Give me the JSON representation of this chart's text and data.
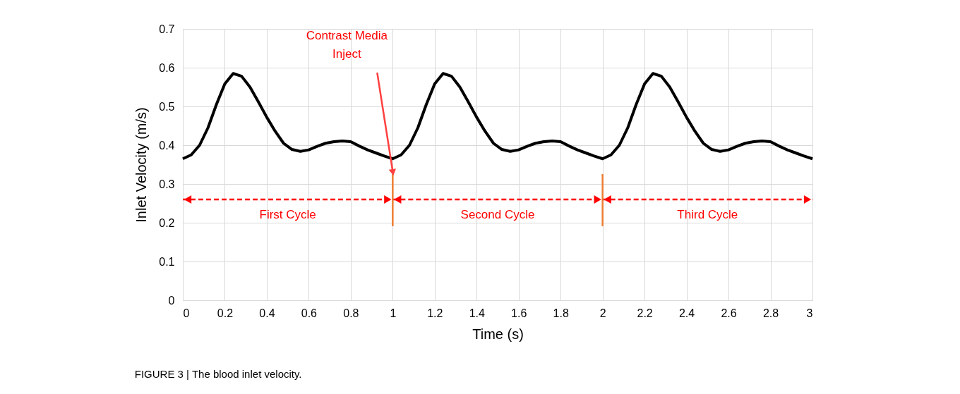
{
  "chart_data": {
    "type": "line",
    "title": "FIGURE 3 | The blood inlet velocity.",
    "xlabel": "Time  (s)",
    "ylabel": "Inlet  Velocity  (m/s)",
    "x": [
      0,
      0.04,
      0.08,
      0.12,
      0.16,
      0.2,
      0.24,
      0.28,
      0.32,
      0.36,
      0.4,
      0.44,
      0.48,
      0.52,
      0.56,
      0.6,
      0.64,
      0.68,
      0.72,
      0.76,
      0.8,
      0.84,
      0.88,
      0.92,
      0.96,
      1.0,
      1.04,
      1.08,
      1.12,
      1.16,
      1.2,
      1.24,
      1.28,
      1.32,
      1.36,
      1.4,
      1.44,
      1.48,
      1.52,
      1.56,
      1.6,
      1.64,
      1.68,
      1.72,
      1.76,
      1.8,
      1.84,
      1.88,
      1.92,
      1.96,
      2.0,
      2.04,
      2.08,
      2.12,
      2.16,
      2.2,
      2.24,
      2.28,
      2.32,
      2.36,
      2.4,
      2.44,
      2.48,
      2.52,
      2.56,
      2.6,
      2.64,
      2.68,
      2.72,
      2.76,
      2.8,
      2.84,
      2.88,
      2.92,
      2.96,
      3.0
    ],
    "series": [
      {
        "color": "#000000",
        "values": [
          0.365,
          0.375,
          0.4,
          0.445,
          0.505,
          0.558,
          0.585,
          0.578,
          0.55,
          0.512,
          0.472,
          0.436,
          0.405,
          0.389,
          0.384,
          0.388,
          0.397,
          0.405,
          0.409,
          0.411,
          0.409,
          0.398,
          0.388,
          0.38,
          0.372,
          0.365,
          0.375,
          0.4,
          0.445,
          0.505,
          0.558,
          0.585,
          0.578,
          0.55,
          0.512,
          0.472,
          0.436,
          0.405,
          0.389,
          0.384,
          0.388,
          0.397,
          0.405,
          0.409,
          0.411,
          0.409,
          0.398,
          0.388,
          0.38,
          0.372,
          0.365,
          0.375,
          0.4,
          0.445,
          0.505,
          0.558,
          0.585,
          0.578,
          0.55,
          0.512,
          0.472,
          0.436,
          0.405,
          0.389,
          0.384,
          0.388,
          0.397,
          0.405,
          0.409,
          0.411,
          0.409,
          0.398,
          0.388,
          0.38,
          0.372,
          0.365
        ]
      }
    ],
    "xlim": [
      0,
      3
    ],
    "xticks": [
      0,
      0.2,
      0.4,
      0.6,
      0.8,
      1,
      1.2,
      1.4,
      1.6,
      1.8,
      2,
      2.2,
      2.4,
      2.6,
      2.8,
      3
    ],
    "ylim": [
      0,
      0.7
    ],
    "yticks": [
      0,
      0.1,
      0.2,
      0.3,
      0.4,
      0.5,
      0.6,
      0.7
    ],
    "ref_lines": [
      {
        "axis": "x",
        "value": 1,
        "color": "#ed7d31"
      },
      {
        "axis": "x",
        "value": 2,
        "color": "#ed7d31"
      }
    ],
    "annotations": [
      "Contrast Media\nInject",
      "First Cycle",
      "Second Cycle",
      "Third Cycle"
    ],
    "grid": true,
    "marker": "none",
    "line_style": "solid"
  }
}
